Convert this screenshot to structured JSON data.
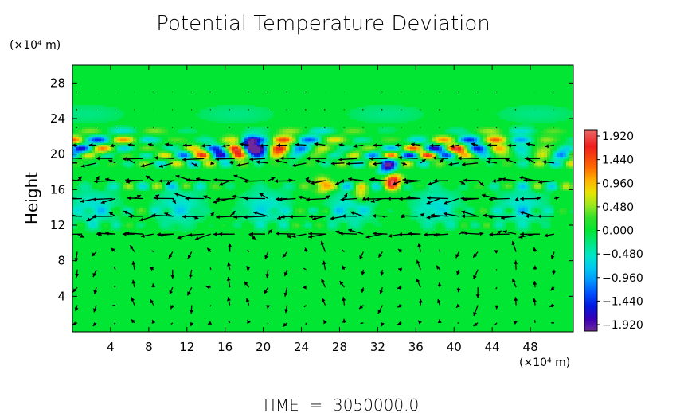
{
  "chart_data": {
    "type": "heatmap",
    "title": "Potential Temperature Deviation",
    "ylabel": "Height",
    "yunit": "(×10⁴ m)",
    "xunit": "(×10⁴ m)",
    "footer": "TIME  =  3050000.0",
    "xlim": [
      0,
      52.5
    ],
    "ylim": [
      0,
      30
    ],
    "xticks": [
      "4",
      "8",
      "12",
      "16",
      "20",
      "24",
      "28",
      "32",
      "36",
      "40",
      "44",
      "48"
    ],
    "xtick_values": [
      4,
      8,
      12,
      16,
      20,
      24,
      28,
      32,
      36,
      40,
      44,
      48
    ],
    "yticks": [
      "4",
      "8",
      "12",
      "16",
      "20",
      "24",
      "28"
    ],
    "ytick_values": [
      4,
      8,
      12,
      16,
      20,
      24,
      28
    ],
    "colorbar": {
      "labels": [
        "1.920",
        "1.440",
        "0.960",
        "0.480",
        "0.000",
        "−0.480",
        "−0.960",
        "−1.440",
        "−1.920"
      ],
      "values": [
        1.92,
        1.44,
        0.96,
        0.48,
        0.0,
        -0.48,
        -0.96,
        -1.44,
        -1.92
      ],
      "stops": [
        {
          "v": 1.92,
          "color": "#e86a6a"
        },
        {
          "v": 1.6,
          "color": "#f01e1e"
        },
        {
          "v": 1.2,
          "color": "#ff6a00"
        },
        {
          "v": 0.96,
          "color": "#ffb000"
        },
        {
          "v": 0.72,
          "color": "#e8e400"
        },
        {
          "v": 0.48,
          "color": "#9ce81e"
        },
        {
          "v": 0.24,
          "color": "#34e02a"
        },
        {
          "v": 0.0,
          "color": "#00e632"
        },
        {
          "v": -0.24,
          "color": "#00e680"
        },
        {
          "v": -0.48,
          "color": "#00e6c8"
        },
        {
          "v": -0.72,
          "color": "#00c8f0"
        },
        {
          "v": -0.96,
          "color": "#0096ff"
        },
        {
          "v": -1.2,
          "color": "#0050ff"
        },
        {
          "v": -1.44,
          "color": "#0018e0"
        },
        {
          "v": -1.7,
          "color": "#3a00b4"
        },
        {
          "v": -1.92,
          "color": "#6e2a9a"
        }
      ]
    },
    "field_bands": [
      {
        "y": 22.6,
        "amp": 0.55
      },
      {
        "y": 21.6,
        "amp": 1.4
      },
      {
        "y": 20.6,
        "amp": 1.9
      },
      {
        "y": 19.9,
        "amp": 1.7
      },
      {
        "y": 18.9,
        "amp": 0.8
      },
      {
        "y": 16.4,
        "amp": 0.7
      },
      {
        "y": 13.6,
        "amp": 0.4
      },
      {
        "y": 12.0,
        "amp": 0.35
      }
    ],
    "streak_levels": [
      19.5,
      17.0,
      15.0,
      13.0,
      11.0
    ],
    "hot_spots": [
      {
        "x": 26.2,
        "y": 16.5,
        "v": 1.2
      },
      {
        "x": 33.6,
        "y": 17.0,
        "v": 1.8
      },
      {
        "x": 30.2,
        "y": 15.5,
        "v": 0.9
      },
      {
        "x": 18.5,
        "y": 21.0,
        "v": -1.8
      },
      {
        "x": 33.0,
        "y": 18.6,
        "v": -1.6
      }
    ]
  }
}
